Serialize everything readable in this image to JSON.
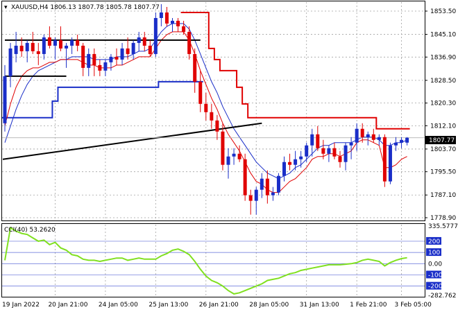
{
  "window": {
    "header": "XAUUSD,H4  1806.13 1807.78 1805.78 1807.77"
  },
  "price_panel": {
    "axis_labels": [
      "1853.50",
      "1845.10",
      "1836.90",
      "1828.50",
      "1820.30",
      "1812.10",
      "1803.70",
      "1795.50",
      "1787.10",
      "1778.90"
    ],
    "current_price": "1807.77"
  },
  "cci_panel": {
    "header": "CCI(40) 53.2620",
    "axis_labels": [
      "335.5777",
      "200",
      "100",
      "0.00",
      "-100",
      "-200",
      "-282.762"
    ]
  },
  "time_axis": [
    "19 Jan 2022",
    "20 Jan 21:00",
    "24 Jan 05:00",
    "25 Jan 13:00",
    "26 Jan 21:00",
    "28 Jan 05:00",
    "31 Jan 13:00",
    "1 Feb 21:00",
    "3 Feb 05:00"
  ],
  "colors": {
    "bull": "#1a2ec8",
    "bear": "#e00000",
    "grid": "#a0a0a0",
    "ma_fast": "#e00000",
    "ma_slow": "#1a2ec8",
    "cci": "#80e020",
    "trend": "#000000",
    "level_line": "#1a2ec8"
  },
  "chart_data": {
    "type": "candlestick",
    "symbol": "XAUUSD",
    "timeframe": "H4",
    "ylim": [
      1778.9,
      1856.0
    ],
    "candles": [
      {
        "o": 1813,
        "h": 1834,
        "l": 1810,
        "c": 1830
      },
      {
        "o": 1830,
        "h": 1842,
        "l": 1826,
        "c": 1840
      },
      {
        "o": 1838,
        "h": 1846,
        "l": 1835,
        "c": 1841
      },
      {
        "o": 1841,
        "h": 1844,
        "l": 1837,
        "c": 1839
      },
      {
        "o": 1839,
        "h": 1843,
        "l": 1835,
        "c": 1842
      },
      {
        "o": 1842,
        "h": 1846,
        "l": 1838,
        "c": 1839
      },
      {
        "o": 1839,
        "h": 1842,
        "l": 1834,
        "c": 1838
      },
      {
        "o": 1838,
        "h": 1845,
        "l": 1836,
        "c": 1844
      },
      {
        "o": 1844,
        "h": 1848,
        "l": 1840,
        "c": 1841
      },
      {
        "o": 1841,
        "h": 1844,
        "l": 1836,
        "c": 1843
      },
      {
        "o": 1843,
        "h": 1848,
        "l": 1839,
        "c": 1840
      },
      {
        "o": 1840,
        "h": 1842,
        "l": 1833,
        "c": 1841
      },
      {
        "o": 1841,
        "h": 1844,
        "l": 1838,
        "c": 1843
      },
      {
        "o": 1843,
        "h": 1845,
        "l": 1839,
        "c": 1841
      },
      {
        "o": 1841,
        "h": 1842,
        "l": 1830,
        "c": 1833
      },
      {
        "o": 1833,
        "h": 1840,
        "l": 1830,
        "c": 1838
      },
      {
        "o": 1838,
        "h": 1840,
        "l": 1830,
        "c": 1834
      },
      {
        "o": 1834,
        "h": 1836,
        "l": 1830,
        "c": 1832
      },
      {
        "o": 1832,
        "h": 1836,
        "l": 1830,
        "c": 1835
      },
      {
        "o": 1835,
        "h": 1838,
        "l": 1832,
        "c": 1837
      },
      {
        "o": 1837,
        "h": 1840,
        "l": 1834,
        "c": 1836
      },
      {
        "o": 1836,
        "h": 1842,
        "l": 1834,
        "c": 1840
      },
      {
        "o": 1840,
        "h": 1844,
        "l": 1836,
        "c": 1838
      },
      {
        "o": 1838,
        "h": 1843,
        "l": 1836,
        "c": 1842
      },
      {
        "o": 1842,
        "h": 1846,
        "l": 1839,
        "c": 1844
      },
      {
        "o": 1844,
        "h": 1846,
        "l": 1839,
        "c": 1841
      },
      {
        "o": 1841,
        "h": 1843,
        "l": 1837,
        "c": 1838
      },
      {
        "o": 1838,
        "h": 1853,
        "l": 1837,
        "c": 1851
      },
      {
        "o": 1851,
        "h": 1856,
        "l": 1848,
        "c": 1853
      },
      {
        "o": 1853,
        "h": 1855,
        "l": 1848,
        "c": 1849
      },
      {
        "o": 1849,
        "h": 1851,
        "l": 1846,
        "c": 1850
      },
      {
        "o": 1850,
        "h": 1851,
        "l": 1846,
        "c": 1848
      },
      {
        "o": 1848,
        "h": 1850,
        "l": 1845,
        "c": 1846
      },
      {
        "o": 1846,
        "h": 1848,
        "l": 1836,
        "c": 1838
      },
      {
        "o": 1838,
        "h": 1840,
        "l": 1824,
        "c": 1828
      },
      {
        "o": 1828,
        "h": 1832,
        "l": 1817,
        "c": 1820
      },
      {
        "o": 1820,
        "h": 1824,
        "l": 1814,
        "c": 1817
      },
      {
        "o": 1817,
        "h": 1820,
        "l": 1811,
        "c": 1814
      },
      {
        "o": 1814,
        "h": 1816,
        "l": 1807,
        "c": 1810
      },
      {
        "o": 1810,
        "h": 1813,
        "l": 1796,
        "c": 1798
      },
      {
        "o": 1798,
        "h": 1804,
        "l": 1793,
        "c": 1801
      },
      {
        "o": 1801,
        "h": 1804,
        "l": 1798,
        "c": 1802
      },
      {
        "o": 1802,
        "h": 1805,
        "l": 1799,
        "c": 1800
      },
      {
        "o": 1800,
        "h": 1802,
        "l": 1785,
        "c": 1787
      },
      {
        "o": 1787,
        "h": 1789,
        "l": 1780,
        "c": 1785
      },
      {
        "o": 1785,
        "h": 1790,
        "l": 1780,
        "c": 1789
      },
      {
        "o": 1789,
        "h": 1795,
        "l": 1786,
        "c": 1793
      },
      {
        "o": 1793,
        "h": 1796,
        "l": 1784,
        "c": 1787
      },
      {
        "o": 1787,
        "h": 1790,
        "l": 1785,
        "c": 1788
      },
      {
        "o": 1788,
        "h": 1795,
        "l": 1787,
        "c": 1794
      },
      {
        "o": 1794,
        "h": 1801,
        "l": 1792,
        "c": 1799
      },
      {
        "o": 1799,
        "h": 1802,
        "l": 1796,
        "c": 1798
      },
      {
        "o": 1798,
        "h": 1803,
        "l": 1796,
        "c": 1800
      },
      {
        "o": 1800,
        "h": 1803,
        "l": 1797,
        "c": 1801
      },
      {
        "o": 1801,
        "h": 1806,
        "l": 1799,
        "c": 1805
      },
      {
        "o": 1805,
        "h": 1811,
        "l": 1801,
        "c": 1809
      },
      {
        "o": 1809,
        "h": 1812,
        "l": 1803,
        "c": 1804
      },
      {
        "o": 1804,
        "h": 1807,
        "l": 1800,
        "c": 1802
      },
      {
        "o": 1802,
        "h": 1805,
        "l": 1799,
        "c": 1804
      },
      {
        "o": 1804,
        "h": 1806,
        "l": 1800,
        "c": 1801
      },
      {
        "o": 1801,
        "h": 1803,
        "l": 1797,
        "c": 1799
      },
      {
        "o": 1799,
        "h": 1806,
        "l": 1796,
        "c": 1805
      },
      {
        "o": 1805,
        "h": 1808,
        "l": 1800,
        "c": 1806
      },
      {
        "o": 1806,
        "h": 1813,
        "l": 1803,
        "c": 1811
      },
      {
        "o": 1811,
        "h": 1813,
        "l": 1806,
        "c": 1808
      },
      {
        "o": 1808,
        "h": 1810,
        "l": 1805,
        "c": 1809
      },
      {
        "o": 1809,
        "h": 1811,
        "l": 1806,
        "c": 1807
      },
      {
        "o": 1807,
        "h": 1809,
        "l": 1805,
        "c": 1808
      },
      {
        "o": 1808,
        "h": 1809,
        "l": 1790,
        "c": 1792
      },
      {
        "o": 1792,
        "h": 1806,
        "l": 1791,
        "c": 1805
      },
      {
        "o": 1805,
        "h": 1808,
        "l": 1803,
        "c": 1806
      },
      {
        "o": 1806,
        "h": 1808,
        "l": 1804,
        "c": 1807
      },
      {
        "o": 1806,
        "h": 1808,
        "l": 1805,
        "c": 1807.77
      }
    ],
    "overlays": {
      "ma_fast": [
        1812,
        1820,
        1826,
        1830,
        1832,
        1833,
        1833,
        1834,
        1835,
        1835,
        1836,
        1836,
        1836,
        1836,
        1835,
        1834,
        1834,
        1833,
        1833,
        1833,
        1834,
        1834,
        1835,
        1836,
        1837,
        1837,
        1837,
        1840,
        1843,
        1845,
        1846,
        1846,
        1846,
        1843,
        1838,
        1832,
        1827,
        1822,
        1818,
        1813,
        1809,
        1806,
        1803,
        1799,
        1795,
        1792,
        1791,
        1789,
        1788,
        1788,
        1790,
        1792,
        1793,
        1795,
        1797,
        1800,
        1801,
        1801,
        1802,
        1802,
        1801,
        1802,
        1803,
        1806,
        1807,
        1807,
        1806,
        1805,
        1797,
        1797,
        1798,
        1800,
        1801
      ],
      "ma_slow": [
        1806,
        1812,
        1818,
        1823,
        1827,
        1830,
        1832,
        1833,
        1834,
        1835,
        1836,
        1836,
        1837,
        1837,
        1837,
        1837,
        1836,
        1836,
        1836,
        1836,
        1837,
        1837,
        1837,
        1838,
        1839,
        1839,
        1840,
        1843,
        1846,
        1848,
        1849,
        1849,
        1849,
        1847,
        1843,
        1838,
        1833,
        1828,
        1824,
        1819,
        1815,
        1811,
        1808,
        1805,
        1802,
        1799,
        1797,
        1795,
        1794,
        1793,
        1794,
        1795,
        1797,
        1798,
        1800,
        1802,
        1804,
        1805,
        1805,
        1806,
        1806,
        1806,
        1806,
        1807,
        1808,
        1808,
        1808,
        1807,
        1805,
        1805,
        1806,
        1806,
        1807
      ],
      "resistance_step": [
        null,
        null,
        null,
        null,
        null,
        null,
        null,
        null,
        null,
        null,
        null,
        null,
        null,
        null,
        null,
        null,
        null,
        null,
        null,
        null,
        null,
        null,
        null,
        null,
        null,
        null,
        null,
        null,
        null,
        null,
        null,
        null,
        1853,
        1853,
        1853,
        1853,
        1853,
        1840,
        1836,
        1832,
        1832,
        1832,
        1826,
        1820,
        1815,
        1815,
        1815,
        1815,
        1815,
        1815,
        1815,
        1815,
        1815,
        1815,
        1815,
        1815,
        1815,
        1815,
        1815,
        1815,
        1815,
        1815,
        1815,
        1815,
        1815,
        1815,
        1815,
        1811,
        1811,
        1811,
        1811,
        1811,
        1811
      ],
      "support_step": [
        1815,
        1815,
        1815,
        1815,
        1815,
        1815,
        1815,
        1815,
        1815,
        1821,
        1826,
        1826,
        1826,
        1826,
        1826,
        1826,
        1826,
        1826,
        1826,
        1826,
        1826,
        1826,
        1826,
        1826,
        1826,
        1826,
        1826,
        1826,
        1828,
        1828,
        1828,
        1828,
        1828,
        1828,
        1828,
        1828
      ]
    },
    "horizontal_lines": [
      {
        "price": 1843,
        "from": 0,
        "to": 35
      },
      {
        "price": 1830,
        "from": 0,
        "to": 11
      }
    ],
    "trendline": {
      "from": [
        0,
        1800
      ],
      "to": [
        46,
        1813
      ]
    },
    "cci": {
      "name": "CCI(40)",
      "ylim": [
        -282.762,
        335.5777
      ],
      "levels": [
        200,
        100,
        0,
        -100,
        -200
      ],
      "values": [
        30,
        320,
        290,
        270,
        260,
        230,
        200,
        210,
        170,
        190,
        140,
        120,
        80,
        70,
        40,
        30,
        30,
        20,
        30,
        40,
        50,
        50,
        30,
        40,
        50,
        40,
        40,
        40,
        70,
        90,
        120,
        130,
        110,
        80,
        20,
        -50,
        -110,
        -150,
        -170,
        -200,
        -240,
        -270,
        -260,
        -240,
        -220,
        -200,
        -180,
        -150,
        -140,
        -130,
        -110,
        -90,
        -80,
        -60,
        -50,
        -40,
        -30,
        -20,
        -10,
        -10,
        -10,
        -5,
        0,
        10,
        30,
        40,
        30,
        20,
        -20,
        10,
        30,
        45,
        53.262
      ]
    }
  }
}
